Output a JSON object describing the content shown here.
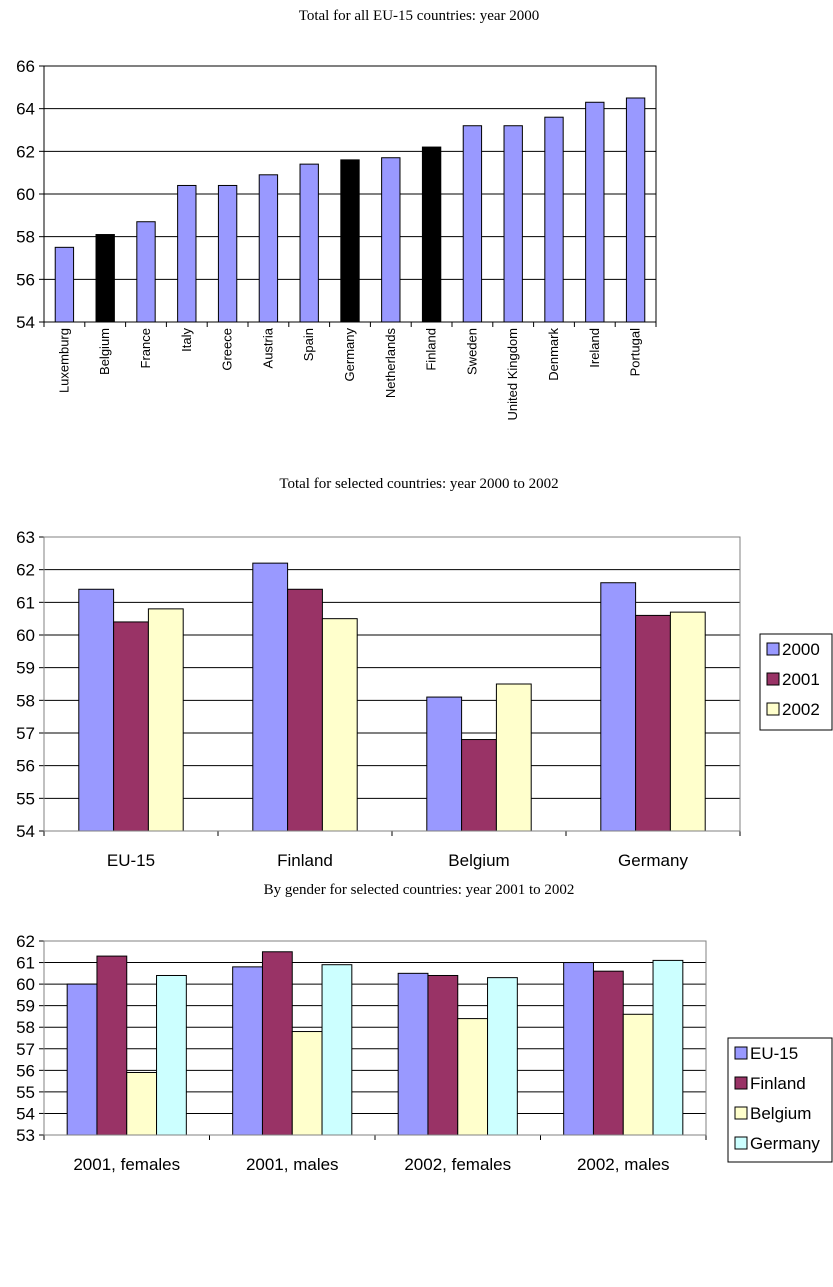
{
  "colors": {
    "periwinkle": "#9999FF",
    "black": "#000000",
    "maroon": "#993366",
    "light_yellow": "#FFFFCC",
    "light_cyan": "#CCFFFF"
  },
  "chart_data": [
    {
      "type": "bar",
      "title": "Total for all EU-15 countries: year 2000",
      "categories": [
        "Luxemburg",
        "Belgium",
        "France",
        "Italy",
        "Greece",
        "Austria",
        "Spain",
        "Germany",
        "Netherlands",
        "Finland",
        "Sweden",
        "United Kingdom",
        "Denmark",
        "Ireland",
        "Portugal"
      ],
      "values": [
        57.5,
        58.1,
        58.7,
        60.4,
        60.4,
        60.9,
        61.4,
        61.6,
        61.7,
        62.2,
        63.2,
        63.2,
        63.6,
        64.3,
        64.5
      ],
      "highlighted": [
        "Belgium",
        "Germany",
        "Finland"
      ],
      "bar_color": "#9999FF",
      "highlight_color": "#000000",
      "ylim": [
        54,
        66
      ],
      "yticks": [
        54,
        56,
        58,
        60,
        62,
        64,
        66
      ],
      "grid": true,
      "legend": "none"
    },
    {
      "type": "bar",
      "title": "Total for selected countries: year 2000 to 2002",
      "categories": [
        "EU-15",
        "Finland",
        "Belgium",
        "Germany"
      ],
      "series": [
        {
          "name": "2000",
          "color": "#9999FF",
          "values": [
            61.4,
            62.2,
            58.1,
            61.6
          ]
        },
        {
          "name": "2001",
          "color": "#993366",
          "values": [
            60.4,
            61.4,
            56.8,
            60.6
          ]
        },
        {
          "name": "2002",
          "color": "#FFFFCC",
          "values": [
            60.8,
            60.5,
            58.5,
            60.7
          ]
        }
      ],
      "ylim": [
        54,
        63
      ],
      "yticks": [
        54,
        55,
        56,
        57,
        58,
        59,
        60,
        61,
        62,
        63
      ],
      "grid": true,
      "legend": "right"
    },
    {
      "type": "bar",
      "title": "By gender for selected countries: year 2001 to 2002",
      "categories": [
        "2001, females",
        "2001, males",
        "2002, females",
        "2002, males"
      ],
      "series": [
        {
          "name": "EU-15",
          "color": "#9999FF",
          "values": [
            60.0,
            60.8,
            60.5,
            61.0
          ]
        },
        {
          "name": "Finland",
          "color": "#993366",
          "values": [
            61.3,
            61.5,
            60.4,
            60.6
          ]
        },
        {
          "name": "Belgium",
          "color": "#FFFFCC",
          "values": [
            55.9,
            57.8,
            58.4,
            58.6
          ]
        },
        {
          "name": "Germany",
          "color": "#CCFFFF",
          "values": [
            60.4,
            60.9,
            60.3,
            61.1
          ]
        }
      ],
      "ylim": [
        53,
        62
      ],
      "yticks": [
        53,
        54,
        55,
        56,
        57,
        58,
        59,
        60,
        61,
        62
      ],
      "grid": true,
      "legend": "right"
    }
  ]
}
